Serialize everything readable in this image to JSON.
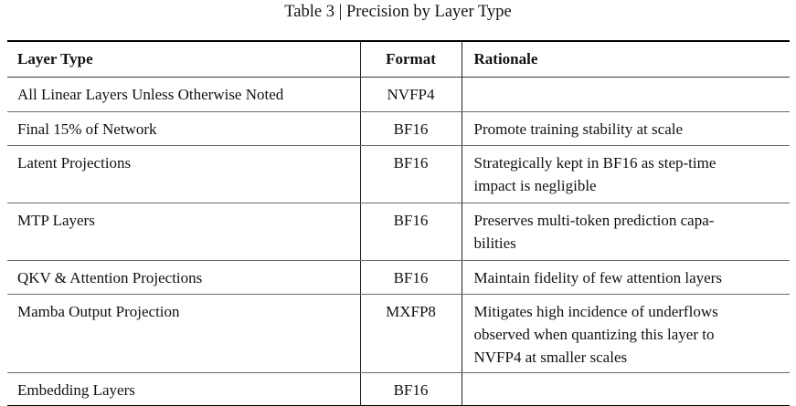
{
  "title": "Table 3 | Precision by Layer Type",
  "table": {
    "columns": [
      "Layer Type",
      "Format",
      "Rationale"
    ],
    "rows": [
      {
        "layer_type": "All Linear Layers Unless Otherwise Noted",
        "format": "NVFP4",
        "rationale": ""
      },
      {
        "layer_type": "Final 15% of Network",
        "format": "BF16",
        "rationale": "Promote training stability at scale"
      },
      {
        "layer_type": "Latent Projections",
        "format": "BF16",
        "rationale": "Strategically kept in BF16 as step-time\nimpact is negligible"
      },
      {
        "layer_type": "MTP Layers",
        "format": "BF16",
        "rationale": "Preserves multi-token prediction capa-\nbilities"
      },
      {
        "layer_type": "QKV & Attention Projections",
        "format": "BF16",
        "rationale": "Maintain fidelity of few attention layers"
      },
      {
        "layer_type": "Mamba Output Projection",
        "format": "MXFP8",
        "rationale": "Mitigates high incidence of underflows\nobserved when quantizing this layer to\nNVFP4 at smaller scales"
      },
      {
        "layer_type": "Embedding Layers",
        "format": "BF16",
        "rationale": ""
      }
    ]
  },
  "colors": {
    "background": "#ffffff",
    "text": "#111111",
    "rule_heavy": "#000000",
    "rule_light": "#6a6a6a"
  }
}
